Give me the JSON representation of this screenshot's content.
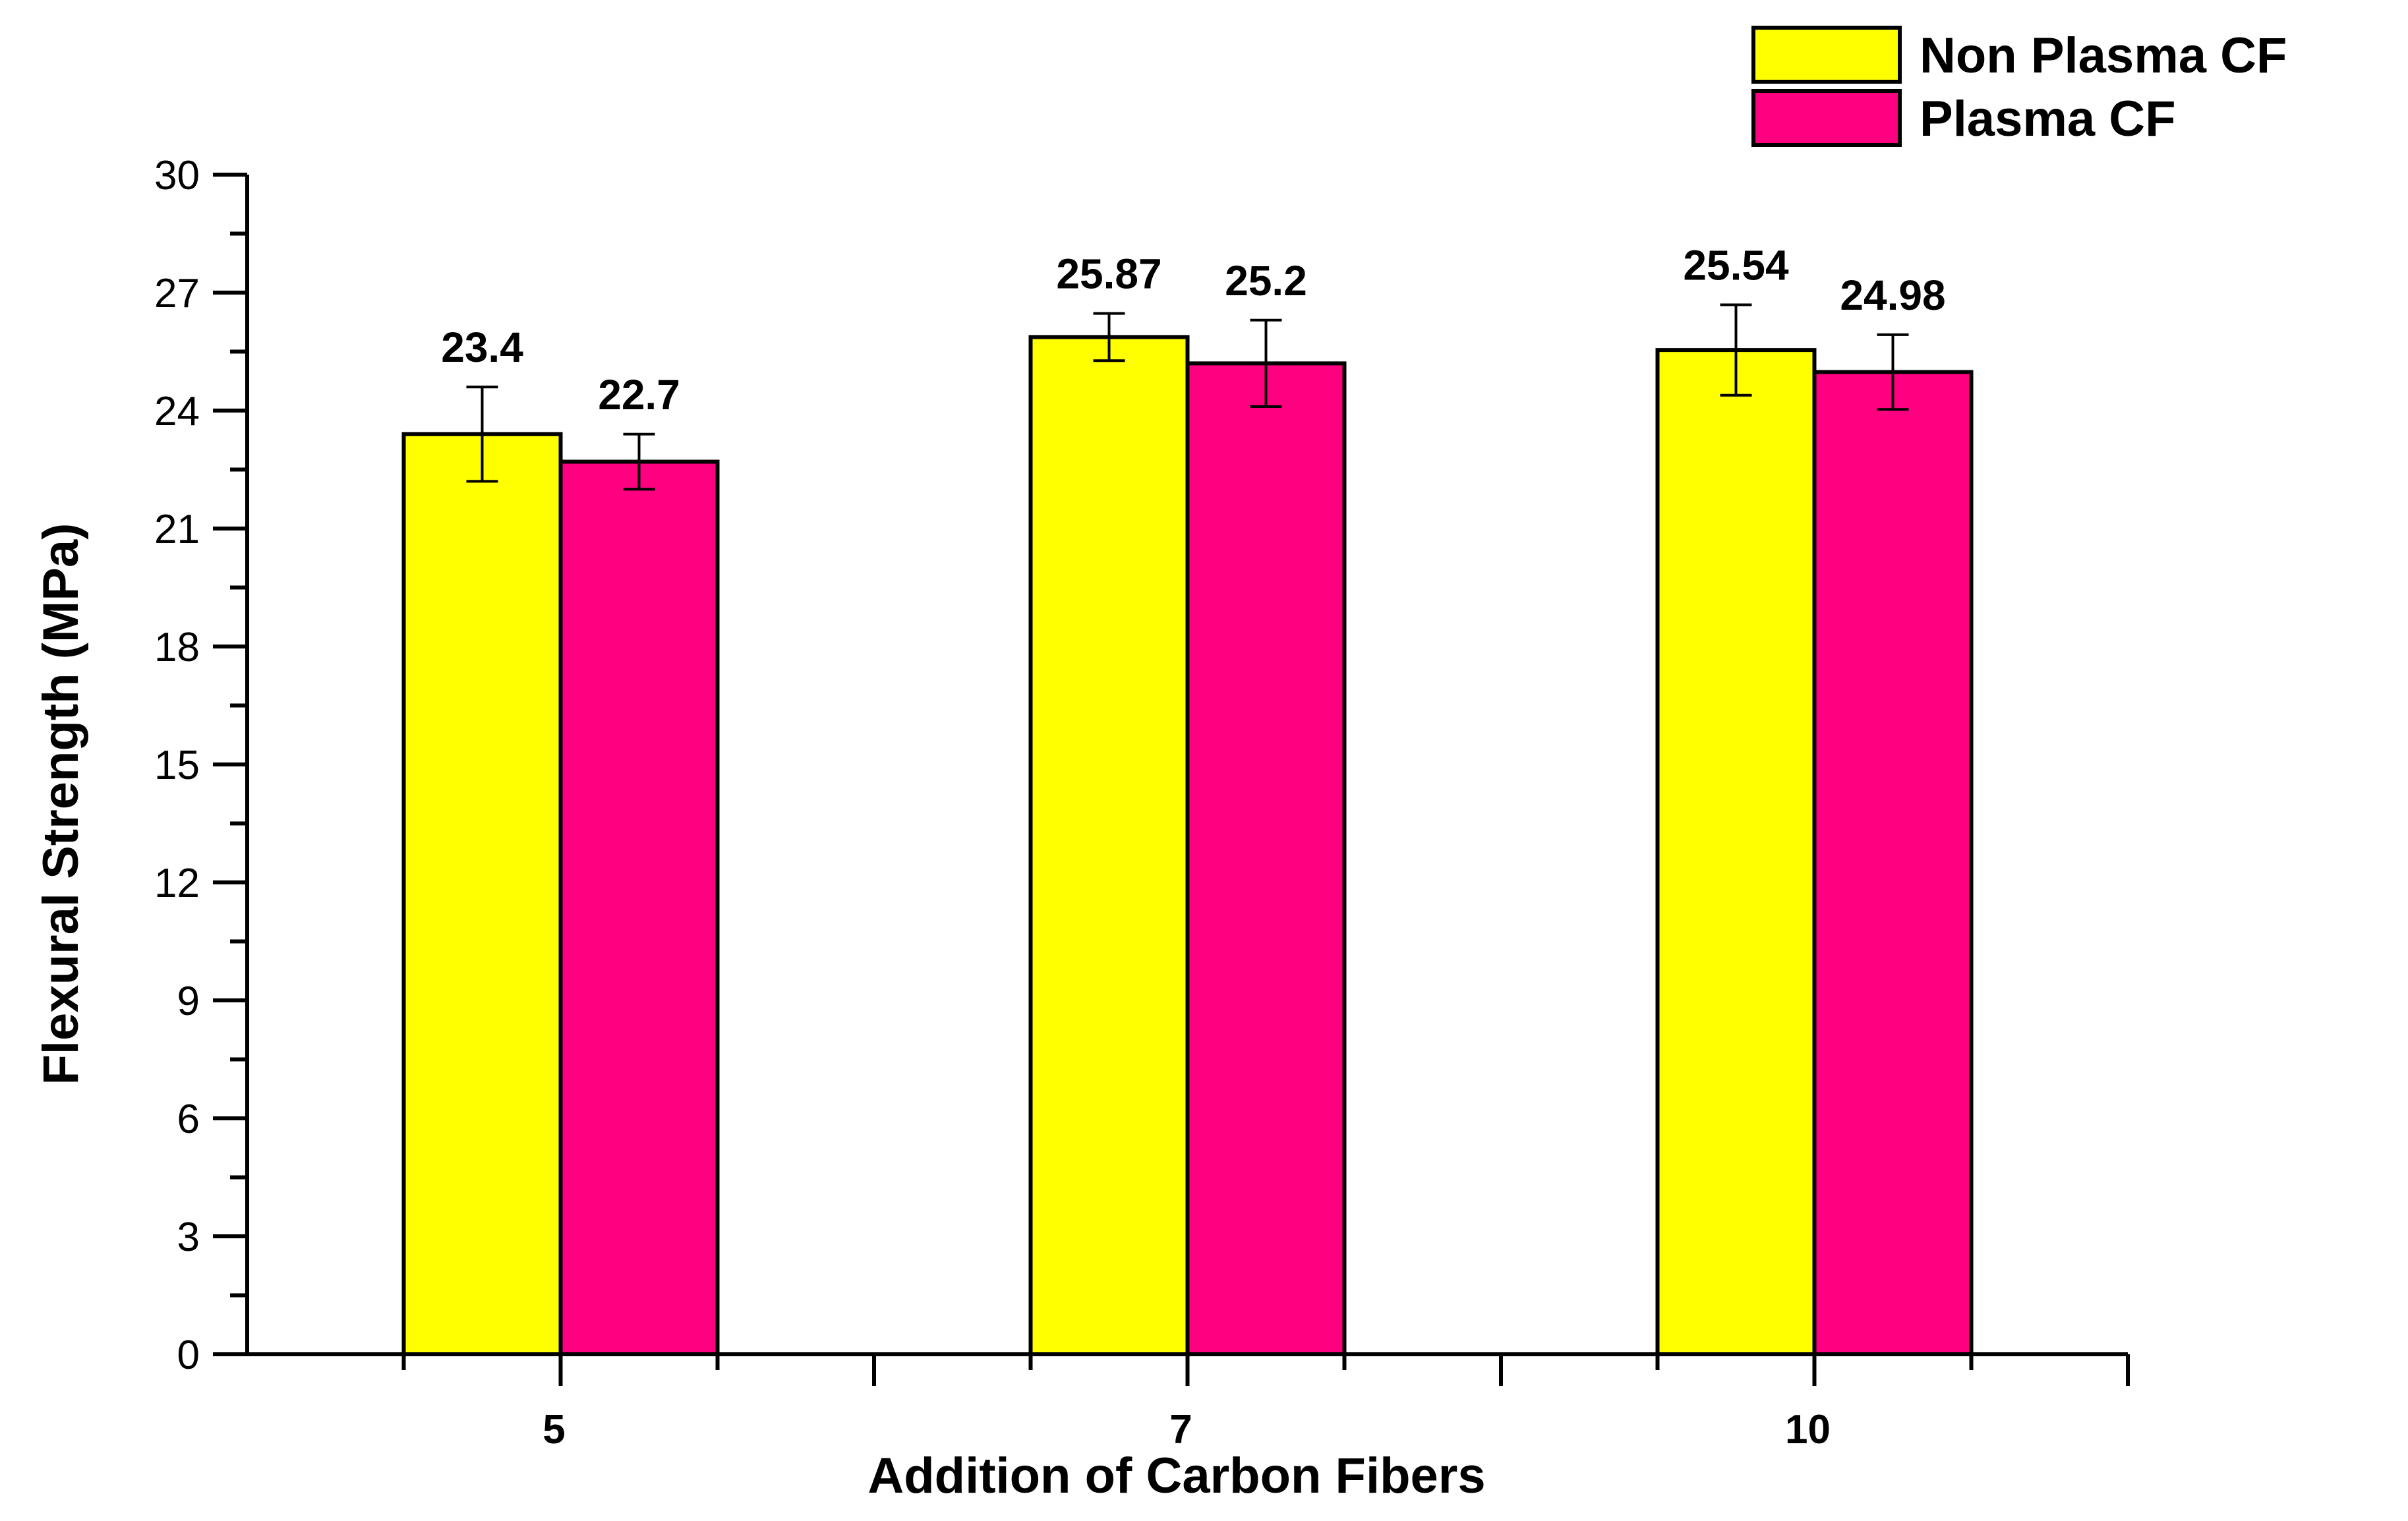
{
  "chart_data": {
    "type": "bar",
    "title": "",
    "xlabel": "Addition of Carbon Fibers",
    "ylabel": "Flexural Strength (MPa)",
    "categories": [
      "5",
      "7",
      "10"
    ],
    "ylim": [
      0,
      30
    ],
    "yticks": [
      0,
      3,
      6,
      9,
      12,
      15,
      18,
      21,
      24,
      27,
      30
    ],
    "series": [
      {
        "name": "Non Plasma CF",
        "color": "#ffff00",
        "values": [
          23.4,
          25.87,
          25.54
        ],
        "value_labels": [
          "23.4",
          "25.87",
          "25.54"
        ],
        "errors": [
          1.2,
          0.6,
          1.15
        ]
      },
      {
        "name": "Plasma CF",
        "color": "#ff0080",
        "values": [
          22.7,
          25.2,
          24.98
        ],
        "value_labels": [
          "22.7",
          "25.2",
          "24.98"
        ],
        "errors": [
          0.7,
          1.1,
          0.95
        ]
      }
    ],
    "legend_position": "top-right",
    "grid": false,
    "error_bars": true
  }
}
